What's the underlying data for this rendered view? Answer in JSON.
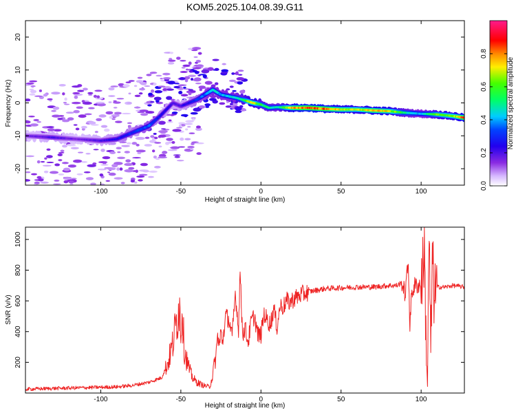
{
  "title": "KOM5.2025.104.08.39.G11",
  "chart_data": [
    {
      "type": "heatmap",
      "xlabel": "Height of straight line (km)",
      "ylabel": "Frequency (Hz)",
      "xlim": [
        -147,
        127
      ],
      "ylim": [
        -25,
        25
      ],
      "x_ticks": [
        -100,
        -50,
        0,
        50,
        100
      ],
      "x_tick_labels": [
        "-100",
        "-50",
        "0",
        "50",
        "100"
      ],
      "y_ticks": [
        -20,
        -10,
        0,
        10,
        20
      ],
      "y_tick_labels": [
        "-20",
        "-10",
        "0",
        "10",
        "20"
      ],
      "colorbar": {
        "label": "Normalized spectral amplitude",
        "range": [
          0,
          1
        ],
        "ticks": [
          0,
          0.2,
          0.4,
          0.6,
          0.8
        ],
        "tick_labels": [
          "0.0",
          "0.2",
          "0.4",
          "0.6",
          "0.8"
        ],
        "colormap": "rainbow (white-violet-blue-cyan-green-yellow-red-magenta)"
      },
      "ridge": [
        {
          "x": -147,
          "y": -10,
          "a": 0.15
        },
        {
          "x": -130,
          "y": -10.5,
          "a": 0.2
        },
        {
          "x": -115,
          "y": -11,
          "a": 0.15
        },
        {
          "x": -100,
          "y": -11.5,
          "a": 0.2
        },
        {
          "x": -90,
          "y": -11,
          "a": 0.25
        },
        {
          "x": -80,
          "y": -9,
          "a": 0.3
        },
        {
          "x": -70,
          "y": -7,
          "a": 0.35
        },
        {
          "x": -63,
          "y": -4,
          "a": 0.25
        },
        {
          "x": -55,
          "y": 0,
          "a": 0.2
        },
        {
          "x": -50,
          "y": -1,
          "a": 0.2
        },
        {
          "x": -45,
          "y": 0,
          "a": 0.25
        },
        {
          "x": -40,
          "y": 1,
          "a": 0.3
        },
        {
          "x": -30,
          "y": 4,
          "a": 0.45
        },
        {
          "x": -25,
          "y": 2.5,
          "a": 0.4
        },
        {
          "x": -15,
          "y": 1.5,
          "a": 0.45
        },
        {
          "x": -5,
          "y": 0,
          "a": 0.7
        },
        {
          "x": 0,
          "y": -0.5,
          "a": 0.55
        },
        {
          "x": 5,
          "y": -1.5,
          "a": 0.5
        },
        {
          "x": 10,
          "y": -1.3,
          "a": 0.45
        },
        {
          "x": 20,
          "y": -1.5,
          "a": 0.75
        },
        {
          "x": 30,
          "y": -1.5,
          "a": 0.85
        },
        {
          "x": 40,
          "y": -1.8,
          "a": 0.8
        },
        {
          "x": 50,
          "y": -2,
          "a": 0.7
        },
        {
          "x": 60,
          "y": -2,
          "a": 0.65
        },
        {
          "x": 70,
          "y": -2.3,
          "a": 0.75
        },
        {
          "x": 80,
          "y": -2.5,
          "a": 0.7
        },
        {
          "x": 90,
          "y": -3,
          "a": 0.5
        },
        {
          "x": 100,
          "y": -3.3,
          "a": 0.4
        },
        {
          "x": 110,
          "y": -3.5,
          "a": 0.6
        },
        {
          "x": 120,
          "y": -4,
          "a": 0.65
        },
        {
          "x": 127,
          "y": -4.5,
          "a": 0.8
        }
      ]
    },
    {
      "type": "line",
      "xlabel": "Height of straight line (km)",
      "ylabel": "SNR (v/v)",
      "xlim": [
        -147,
        127
      ],
      "ylim": [
        0,
        1080
      ],
      "x_ticks": [
        -100,
        -50,
        0,
        50,
        100
      ],
      "x_tick_labels": [
        "-100",
        "-50",
        "0",
        "50",
        "100"
      ],
      "y_ticks": [
        200,
        400,
        600,
        800,
        1000
      ],
      "y_tick_labels": [
        "200",
        "400",
        "600",
        "800",
        "1000"
      ],
      "color": "#ee2222",
      "series": [
        {
          "x": [
            -147,
            -130,
            -110,
            -90,
            -80,
            -70,
            -62,
            -58,
            -55,
            -53,
            -51,
            -50,
            -49,
            -48,
            -46,
            -44,
            -42,
            -40,
            -36,
            -32,
            -30,
            -28,
            -27,
            -26,
            -25,
            -24,
            -22,
            -20,
            -18,
            -16,
            -14,
            -13,
            -12,
            -11,
            -10,
            -8,
            -6,
            -4,
            -2,
            0,
            2,
            4,
            6,
            8,
            10,
            12,
            14,
            16,
            18,
            20,
            25,
            30,
            40,
            50,
            60,
            70,
            80,
            85,
            88,
            90,
            92,
            93,
            94,
            96,
            100,
            102,
            103,
            104,
            105,
            106,
            107,
            108,
            110,
            115,
            120,
            127
          ],
          "y": [
            25,
            30,
            35,
            40,
            50,
            70,
            100,
            200,
            320,
            450,
            580,
            420,
            560,
            300,
            200,
            130,
            90,
            70,
            50,
            40,
            120,
            250,
            380,
            300,
            400,
            330,
            500,
            480,
            360,
            650,
            420,
            800,
            500,
            380,
            430,
            330,
            470,
            500,
            380,
            380,
            520,
            470,
            450,
            550,
            430,
            570,
            560,
            600,
            590,
            610,
            640,
            660,
            680,
            685,
            690,
            690,
            700,
            700,
            720,
            640,
            860,
            420,
            650,
            700,
            705,
            920,
            400,
            70,
            1080,
            200,
            900,
            650,
            690,
            690,
            700,
            690
          ]
        }
      ]
    }
  ]
}
